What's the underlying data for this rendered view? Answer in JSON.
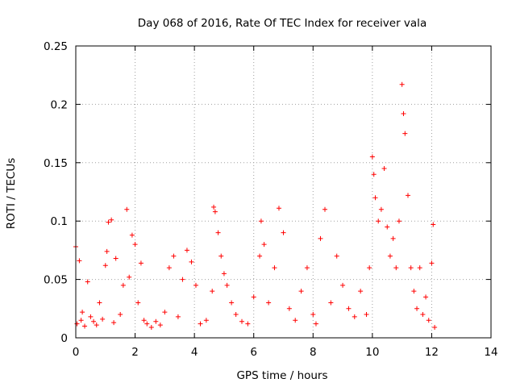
{
  "chart_data": {
    "type": "scatter",
    "title": "Day 068 of 2016, Rate Of TEC Index for receiver vala",
    "xlabel": "GPS time / hours",
    "ylabel": "ROTI / TECUs",
    "xlim": [
      0,
      14
    ],
    "ylim": [
      0,
      0.25
    ],
    "x_ticks": [
      0,
      2,
      4,
      6,
      8,
      10,
      12,
      14
    ],
    "x_tick_labels": [
      "0",
      "2",
      "4",
      "6",
      "8",
      "10",
      "12",
      "14"
    ],
    "y_ticks": [
      0,
      0.05,
      0.1,
      0.15,
      0.2,
      0.25
    ],
    "y_tick_labels": [
      "0",
      "0.05",
      "0.1",
      "0.15",
      "0.2",
      "0.25"
    ],
    "grid": true,
    "marker": "+",
    "series": [
      {
        "name": "ROTI",
        "color": "#ff0000",
        "x": [
          0.0,
          0.04,
          0.12,
          0.18,
          0.22,
          0.3,
          0.4,
          0.5,
          0.6,
          0.7,
          0.8,
          0.9,
          1.0,
          1.05,
          1.1,
          1.2,
          1.28,
          1.35,
          1.5,
          1.6,
          1.72,
          1.8,
          1.9,
          2.0,
          2.1,
          2.2,
          2.3,
          2.4,
          2.55,
          2.7,
          2.85,
          3.0,
          3.15,
          3.3,
          3.45,
          3.6,
          3.75,
          3.9,
          4.05,
          4.2,
          4.4,
          4.6,
          4.65,
          4.7,
          4.8,
          4.9,
          5.0,
          5.1,
          5.25,
          5.4,
          5.6,
          5.8,
          6.0,
          6.2,
          6.25,
          6.35,
          6.5,
          6.7,
          6.85,
          7.0,
          7.2,
          7.4,
          7.6,
          7.8,
          8.0,
          8.1,
          8.25,
          8.4,
          8.6,
          8.8,
          9.0,
          9.2,
          9.4,
          9.6,
          9.8,
          9.9,
          10.0,
          10.05,
          10.1,
          10.2,
          10.3,
          10.4,
          10.5,
          10.6,
          10.7,
          10.8,
          10.9,
          11.0,
          11.05,
          11.1,
          11.2,
          11.3,
          11.4,
          11.5,
          11.6,
          11.7,
          11.8,
          11.9,
          12.0,
          12.05,
          12.1
        ],
        "y": [
          0.078,
          0.012,
          0.066,
          0.015,
          0.022,
          0.01,
          0.048,
          0.018,
          0.014,
          0.011,
          0.03,
          0.016,
          0.062,
          0.074,
          0.099,
          0.101,
          0.013,
          0.068,
          0.02,
          0.045,
          0.11,
          0.052,
          0.088,
          0.08,
          0.03,
          0.064,
          0.015,
          0.012,
          0.009,
          0.014,
          0.011,
          0.022,
          0.06,
          0.07,
          0.018,
          0.05,
          0.075,
          0.065,
          0.045,
          0.012,
          0.015,
          0.04,
          0.112,
          0.108,
          0.09,
          0.07,
          0.055,
          0.045,
          0.03,
          0.02,
          0.014,
          0.012,
          0.035,
          0.07,
          0.1,
          0.08,
          0.03,
          0.06,
          0.111,
          0.09,
          0.025,
          0.015,
          0.04,
          0.06,
          0.02,
          0.012,
          0.085,
          0.11,
          0.03,
          0.07,
          0.045,
          0.025,
          0.018,
          0.04,
          0.02,
          0.06,
          0.155,
          0.14,
          0.12,
          0.1,
          0.11,
          0.145,
          0.095,
          0.07,
          0.085,
          0.06,
          0.1,
          0.217,
          0.192,
          0.175,
          0.122,
          0.06,
          0.04,
          0.025,
          0.06,
          0.02,
          0.035,
          0.015,
          0.064,
          0.097,
          0.009
        ]
      }
    ]
  }
}
